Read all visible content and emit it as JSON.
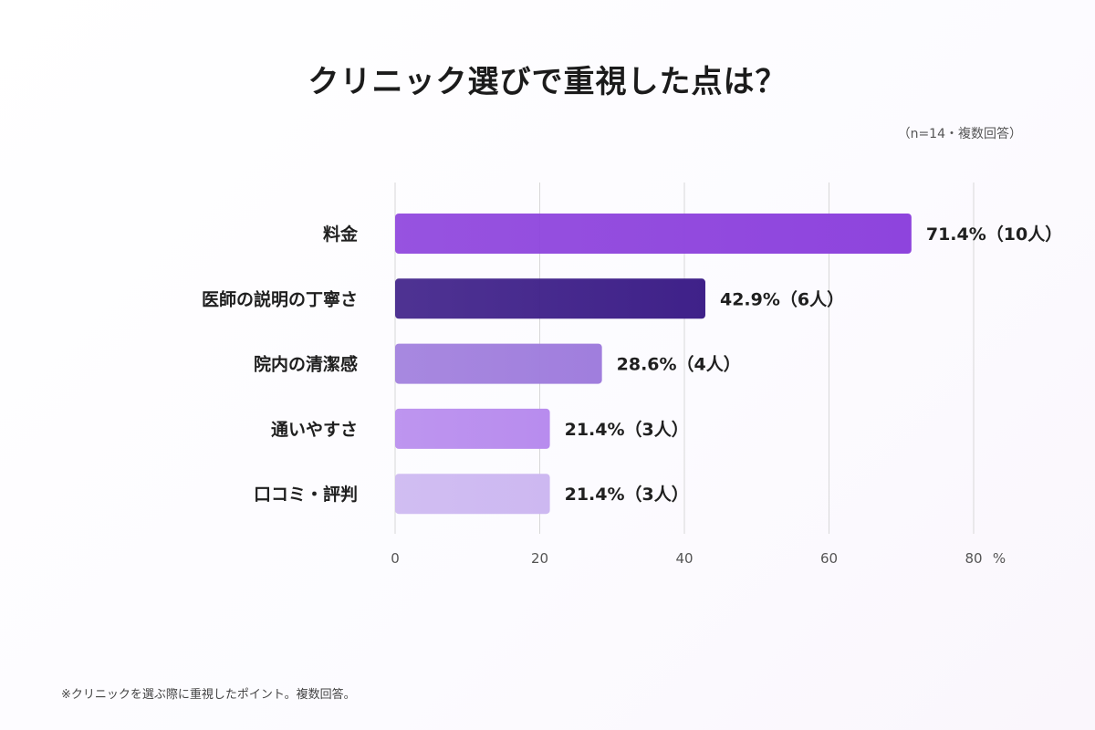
{
  "chart_data": {
    "type": "bar",
    "orientation": "horizontal",
    "title": "クリニック選びで重視した点は？",
    "note": "（n=14・複数回答）",
    "footnote": "※クリニックを選ぶ際に重視したポイント。複数回答。",
    "categories": [
      "料金",
      "医師の説明の丁寧さ",
      "院内の清潔感",
      "通いやすさ",
      "口コミ・評判"
    ],
    "values": [
      71.4,
      42.9,
      28.6,
      21.4,
      21.4
    ],
    "value_labels": [
      "71.4%（10人）",
      "42.9%（6人）",
      "28.6%（4人）",
      "21.4%（3人）",
      "21.4%（3人）"
    ],
    "colors": [
      "#8e44dd",
      "#3f2189",
      "#a07edd",
      "#b88cee",
      "#cdb8f1"
    ],
    "xlim": [
      0,
      80
    ],
    "xticks": [
      0,
      20,
      40,
      60,
      80
    ],
    "xtick_labels": [
      "0",
      "20",
      "40",
      "60",
      "80"
    ],
    "x_unit": "%",
    "grid": true,
    "gridline_color": "#d8d8d8"
  }
}
